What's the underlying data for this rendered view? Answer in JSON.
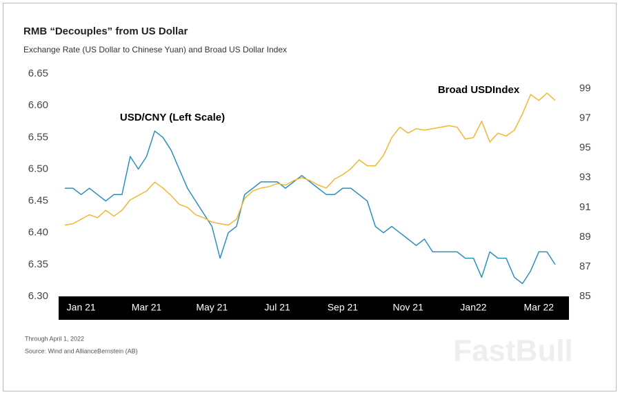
{
  "chart_data": {
    "type": "line",
    "title": "RMB “Decouples” from US Dollar",
    "subtitle": "Exchange Rate (US Dollar to Chinese Yuan) and Broad US Dollar Index",
    "categories": [
      null,
      null,
      "Jan 21",
      null,
      null,
      null,
      null,
      null,
      null,
      null,
      "Mar 21",
      null,
      null,
      null,
      null,
      null,
      null,
      null,
      "May 21",
      null,
      null,
      null,
      null,
      null,
      null,
      null,
      "Jul 21",
      null,
      null,
      null,
      null,
      null,
      null,
      null,
      "Sep 21",
      null,
      null,
      null,
      null,
      null,
      null,
      null,
      "Nov 21",
      null,
      null,
      null,
      null,
      null,
      null,
      null,
      "Jan22",
      null,
      null,
      null,
      null,
      null,
      null,
      null,
      "Mar 22",
      null,
      null
    ],
    "series": [
      {
        "name": "USD/CNY (Left Scale)",
        "color": "#2a8fbd",
        "axis": "y",
        "values": [
          6.47,
          6.47,
          6.46,
          6.47,
          6.46,
          6.45,
          6.46,
          6.46,
          6.52,
          6.5,
          6.52,
          6.56,
          6.55,
          6.53,
          6.5,
          6.47,
          6.45,
          6.43,
          6.41,
          6.36,
          6.4,
          6.41,
          6.46,
          6.47,
          6.48,
          6.48,
          6.48,
          6.47,
          6.48,
          6.49,
          6.48,
          6.47,
          6.46,
          6.46,
          6.47,
          6.47,
          6.46,
          6.45,
          6.41,
          6.4,
          6.41,
          6.4,
          6.39,
          6.38,
          6.39,
          6.37,
          6.37,
          6.37,
          6.37,
          6.36,
          6.36,
          6.33,
          6.37,
          6.36,
          6.36,
          6.33,
          6.32,
          6.34,
          6.37,
          6.37,
          6.35
        ]
      },
      {
        "name": "Broad USDIndex",
        "color": "#f2b630",
        "axis": "y2",
        "values": [
          89.8,
          89.9,
          90.2,
          90.5,
          90.3,
          90.8,
          90.4,
          90.8,
          91.5,
          91.8,
          92.1,
          92.7,
          92.3,
          91.8,
          91.2,
          91.0,
          90.5,
          90.3,
          90.0,
          89.9,
          89.8,
          90.2,
          91.6,
          92.1,
          92.3,
          92.4,
          92.6,
          92.5,
          92.8,
          93.0,
          92.8,
          92.5,
          92.3,
          92.9,
          93.2,
          93.6,
          94.2,
          93.8,
          93.8,
          94.5,
          95.7,
          96.4,
          96.0,
          96.3,
          96.2,
          96.3,
          96.4,
          96.5,
          96.4,
          95.6,
          95.7,
          96.8,
          95.4,
          96.0,
          95.8,
          96.2,
          97.3,
          98.6,
          98.2,
          98.7,
          98.2
        ]
      }
    ],
    "ylim": [
      6.3,
      6.65
    ],
    "yticks": [
      {
        "value": 6.3,
        "label": "6.30"
      },
      6.35,
      {
        "value": 6.4,
        "label": "6.40"
      },
      6.45,
      {
        "value": 6.5,
        "label": "6.50"
      },
      6.55,
      {
        "value": 6.6,
        "label": "6.60"
      },
      6.65
    ],
    "y2lim": [
      85,
      100
    ],
    "y2ticks": [
      85,
      87,
      89,
      91,
      93,
      95,
      97,
      99
    ],
    "grid": false,
    "notes": [
      "Through April 1, 2022",
      "Source: Wind and AllianceBernstein (AB)"
    ],
    "watermark": "FastBull"
  }
}
